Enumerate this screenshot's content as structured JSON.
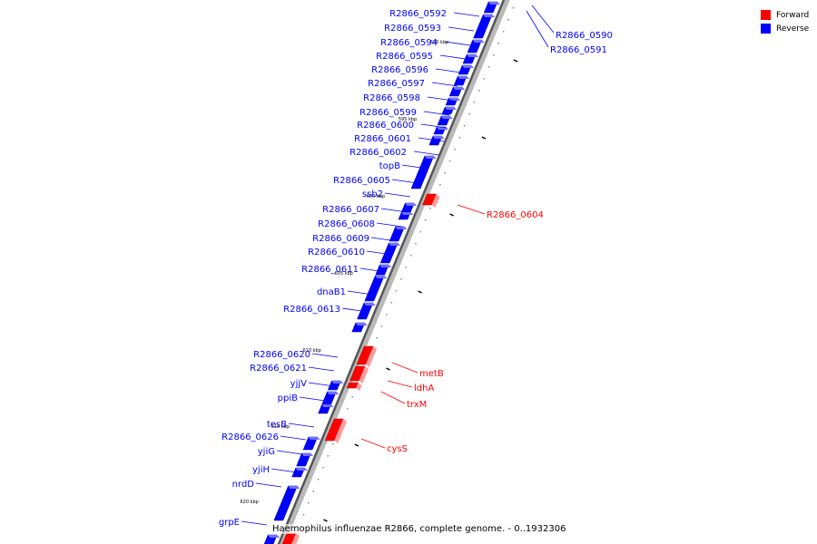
{
  "caption": "Haemophilus influenzae R2866, complete genome. - 0..1932306",
  "legend": {
    "forward_label": "Forward",
    "reverse_label": "Reverse",
    "forward_color": "#ff0000",
    "reverse_color": "#0000ff"
  },
  "ticks": [
    "590 kbp",
    "595 kbp",
    "600 kbp",
    "605 kbp",
    "610 kbp",
    "615 kbp",
    "620 kbp"
  ],
  "reverse_genes": [
    "R2866_0592",
    "R2866_0593",
    "R2866_0594",
    "R2866_0595",
    "R2866_0596",
    "R2866_0597",
    "R2866_0598",
    "R2866_0599",
    "R2866_0600",
    "R2866_0601",
    "R2866_0602",
    "topB",
    "R2866_0605",
    "ssb2",
    "R2866_0607",
    "R2866_0608",
    "R2866_0609",
    "R2866_0610",
    "R2866_0611",
    "dnaB1",
    "R2866_0613",
    "R2866_0620",
    "R2866_0621",
    "yjjV",
    "ppiB",
    "tesB",
    "R2866_0626",
    "yjiG",
    "yjiH",
    "nrdD",
    "grpE"
  ],
  "reverse_genes_right": [
    "R2866_0590",
    "R2866_0591"
  ],
  "forward_genes": [
    "R2866_0604",
    "metB",
    "ldhA",
    "trxM",
    "cysS"
  ]
}
